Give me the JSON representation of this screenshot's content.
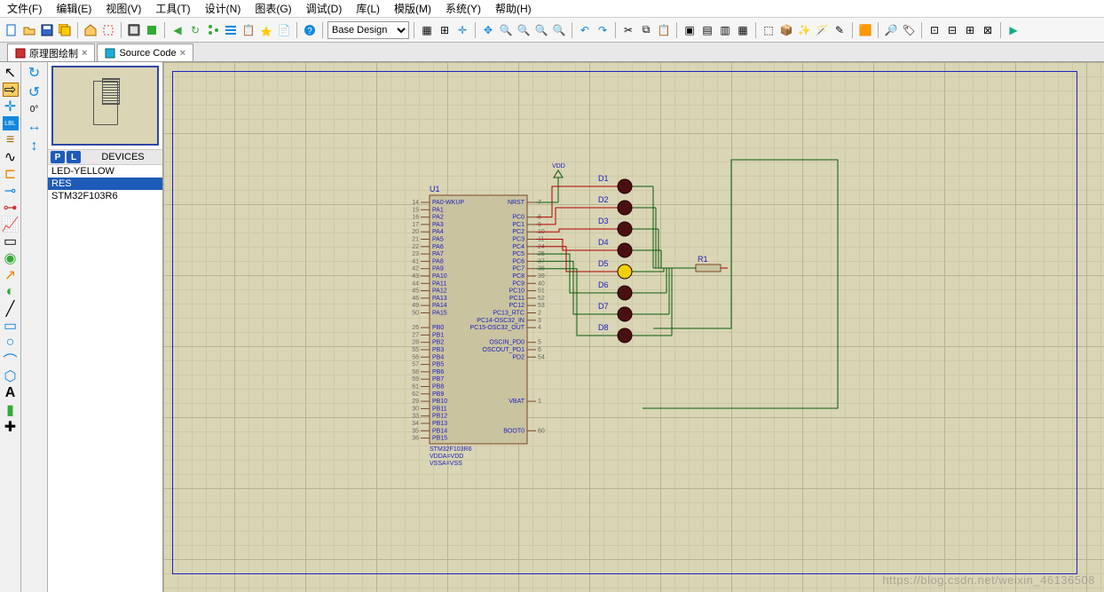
{
  "menu": [
    "文件(F)",
    "编辑(E)",
    "视图(V)",
    "工具(T)",
    "设计(N)",
    "图表(G)",
    "调试(D)",
    "库(L)",
    "模版(M)",
    "系统(Y)",
    "帮助(H)"
  ],
  "design_combo": "Base Design",
  "tabs": [
    {
      "icon": "schem",
      "label": "原理图绘制"
    },
    {
      "icon": "src",
      "label": "Source Code"
    }
  ],
  "rotation": "0°",
  "devices_header": "DEVICES",
  "devices": [
    "LED-YELLOW",
    "RES",
    "STM32F103R6"
  ],
  "devices_selected": 1,
  "chip": {
    "ref": "U1",
    "part": "STM32F103R6",
    "footer": [
      "STM32F103R6",
      "VDDA=VDD",
      "VSSA=VSS"
    ],
    "left_pins": [
      {
        "n": "14",
        "name": "PA0-WKUP"
      },
      {
        "n": "15",
        "name": "PA1"
      },
      {
        "n": "16",
        "name": "PA2"
      },
      {
        "n": "17",
        "name": "PA3"
      },
      {
        "n": "20",
        "name": "PA4"
      },
      {
        "n": "21",
        "name": "PA5"
      },
      {
        "n": "22",
        "name": "PA6"
      },
      {
        "n": "23",
        "name": "PA7"
      },
      {
        "n": "41",
        "name": "PA8"
      },
      {
        "n": "42",
        "name": "PA9"
      },
      {
        "n": "43",
        "name": "PA10"
      },
      {
        "n": "44",
        "name": "PA11"
      },
      {
        "n": "45",
        "name": "PA12"
      },
      {
        "n": "46",
        "name": "PA13"
      },
      {
        "n": "49",
        "name": "PA14"
      },
      {
        "n": "50",
        "name": "PA15"
      },
      {
        "n": "",
        "name": ""
      },
      {
        "n": "26",
        "name": "PB0"
      },
      {
        "n": "27",
        "name": "PB1"
      },
      {
        "n": "28",
        "name": "PB2"
      },
      {
        "n": "55",
        "name": "PB3"
      },
      {
        "n": "56",
        "name": "PB4"
      },
      {
        "n": "57",
        "name": "PB5"
      },
      {
        "n": "58",
        "name": "PB6"
      },
      {
        "n": "59",
        "name": "PB7"
      },
      {
        "n": "61",
        "name": "PB8"
      },
      {
        "n": "62",
        "name": "PB9"
      },
      {
        "n": "29",
        "name": "PB10"
      },
      {
        "n": "30",
        "name": "PB11"
      },
      {
        "n": "33",
        "name": "PB12"
      },
      {
        "n": "34",
        "name": "PB13"
      },
      {
        "n": "35",
        "name": "PB14"
      },
      {
        "n": "36",
        "name": "PB15"
      }
    ],
    "right_pins": [
      {
        "n": "7",
        "name": "NRST"
      },
      {
        "n": "",
        "name": ""
      },
      {
        "n": "8",
        "name": "PC0"
      },
      {
        "n": "9",
        "name": "PC1"
      },
      {
        "n": "10",
        "name": "PC2"
      },
      {
        "n": "11",
        "name": "PC3"
      },
      {
        "n": "24",
        "name": "PC4"
      },
      {
        "n": "25",
        "name": "PC5"
      },
      {
        "n": "37",
        "name": "PC6"
      },
      {
        "n": "38",
        "name": "PC7"
      },
      {
        "n": "39",
        "name": "PC8"
      },
      {
        "n": "40",
        "name": "PC9"
      },
      {
        "n": "51",
        "name": "PC10"
      },
      {
        "n": "52",
        "name": "PC11"
      },
      {
        "n": "53",
        "name": "PC12"
      },
      {
        "n": "2",
        "name": "PC13_RTC"
      },
      {
        "n": "3",
        "name": "PC14-OSC32_IN"
      },
      {
        "n": "4",
        "name": "PC15-OSC32_OUT"
      },
      {
        "n": "",
        "name": ""
      },
      {
        "n": "5",
        "name": "OSCIN_PD0"
      },
      {
        "n": "6",
        "name": "OSCOUT_PD1"
      },
      {
        "n": "54",
        "name": "PD2"
      },
      {
        "n": "",
        "name": ""
      },
      {
        "n": "",
        "name": ""
      },
      {
        "n": "",
        "name": ""
      },
      {
        "n": "",
        "name": ""
      },
      {
        "n": "",
        "name": ""
      },
      {
        "n": "1",
        "name": "VBAT"
      },
      {
        "n": "",
        "name": ""
      },
      {
        "n": "",
        "name": ""
      },
      {
        "n": "",
        "name": ""
      },
      {
        "n": "60",
        "name": "BOOT0"
      }
    ]
  },
  "leds": [
    "D1",
    "D2",
    "D3",
    "D4",
    "D5",
    "D6",
    "D7",
    "D8"
  ],
  "led_highlight": 4,
  "resistor": "R1",
  "vdd": "VDD",
  "colors": {
    "wire": "#0a5a0a",
    "wire_red": "#b00000",
    "led_dark": "#4a1010",
    "led_lit": "#f0d000",
    "chip_fill": "#c9c39f",
    "chip_border": "#7a4a2a",
    "ref": "#2020c0"
  },
  "watermark": "https://blog.csdn.net/weixin_46136508"
}
